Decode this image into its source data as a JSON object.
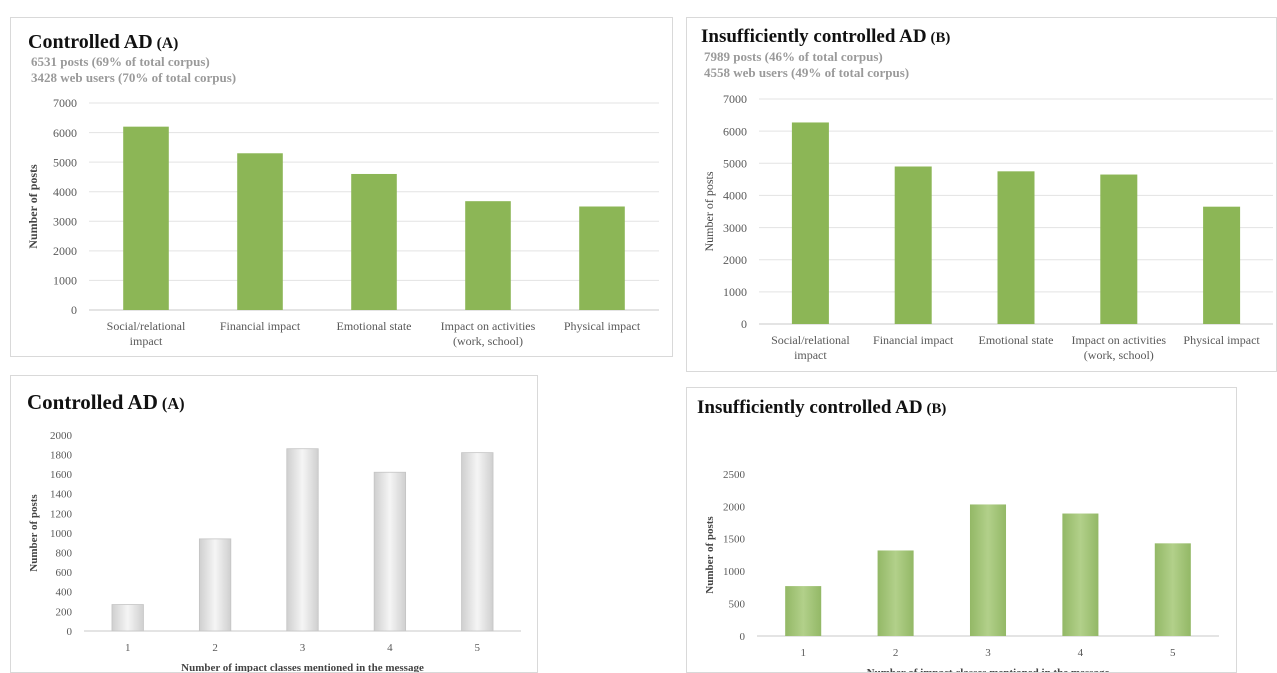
{
  "colors": {
    "green": "#8cb656",
    "green_light": "#a9c97c",
    "grey_bar": "#e6e6e6",
    "grid": "#e3e3e3",
    "axis_text": "#595959"
  },
  "chart_data": [
    {
      "id": "A-impact",
      "type": "bar",
      "title": "Controlled AD",
      "title_suffix": "(A)",
      "subtitle": [
        "6531 posts (69% of total corpus)",
        "3428 web users (70% of total corpus)"
      ],
      "ylabel": "Number of posts",
      "xlabel": "",
      "ylim": [
        0,
        7000
      ],
      "yticks": [
        0,
        1000,
        2000,
        3000,
        4000,
        5000,
        6000,
        7000
      ],
      "categories": [
        [
          "Social/relational",
          "impact"
        ],
        [
          "Financial impact"
        ],
        [
          "Emotional state"
        ],
        [
          "Impact on activities",
          "(work, school)"
        ],
        [
          "Physical impact"
        ]
      ],
      "values": [
        6200,
        5300,
        4600,
        3680,
        3500
      ],
      "bar_color": "#8cb656",
      "grid": true
    },
    {
      "id": "B-impact",
      "type": "bar",
      "title": "Insufficiently  controlled AD",
      "title_suffix": "(B)",
      "subtitle": [
        "7989 posts (46% of total corpus)",
        "4558 web users (49% of total corpus)"
      ],
      "ylabel": "Number of posts",
      "xlabel": "",
      "ylim": [
        0,
        7000
      ],
      "yticks": [
        0,
        1000,
        2000,
        3000,
        4000,
        5000,
        6000,
        7000
      ],
      "categories": [
        [
          "Social/relational",
          "impact"
        ],
        [
          "Financial impact"
        ],
        [
          "Emotional state"
        ],
        [
          "Impact on activities",
          "(work, school)"
        ],
        [
          "Physical impact"
        ]
      ],
      "values": [
        6270,
        4900,
        4750,
        4650,
        3650
      ],
      "bar_color": "#8cb656",
      "grid": true
    },
    {
      "id": "A-classes",
      "type": "bar",
      "title": "Controlled AD",
      "title_suffix": "(A)",
      "subtitle": [],
      "ylabel": "Number of posts",
      "xlabel": "Number of impact classes mentioned in the message",
      "ylim": [
        0,
        2000
      ],
      "yticks": [
        0,
        200,
        400,
        600,
        800,
        1000,
        1200,
        1400,
        1600,
        1800,
        2000
      ],
      "categories": [
        [
          "1"
        ],
        [
          "2"
        ],
        [
          "3"
        ],
        [
          "4"
        ],
        [
          "5"
        ]
      ],
      "values": [
        270,
        940,
        1860,
        1620,
        1820
      ],
      "bar_color": "#e6e6e6",
      "grid": false
    },
    {
      "id": "B-classes",
      "type": "bar",
      "title": "Insufficiently  controlled AD",
      "title_suffix": "(B)",
      "subtitle": [],
      "ylabel": "Number of posts",
      "xlabel": "Number of impact classes mentioned in the message",
      "ylim": [
        0,
        2500
      ],
      "yticks": [
        0,
        500,
        1000,
        1500,
        2000,
        2500
      ],
      "categories": [
        [
          "1"
        ],
        [
          "2"
        ],
        [
          "3"
        ],
        [
          "4"
        ],
        [
          "5"
        ]
      ],
      "values": [
        770,
        1320,
        2030,
        1890,
        1430
      ],
      "bar_color": "#a9c97c",
      "grid": false
    }
  ]
}
